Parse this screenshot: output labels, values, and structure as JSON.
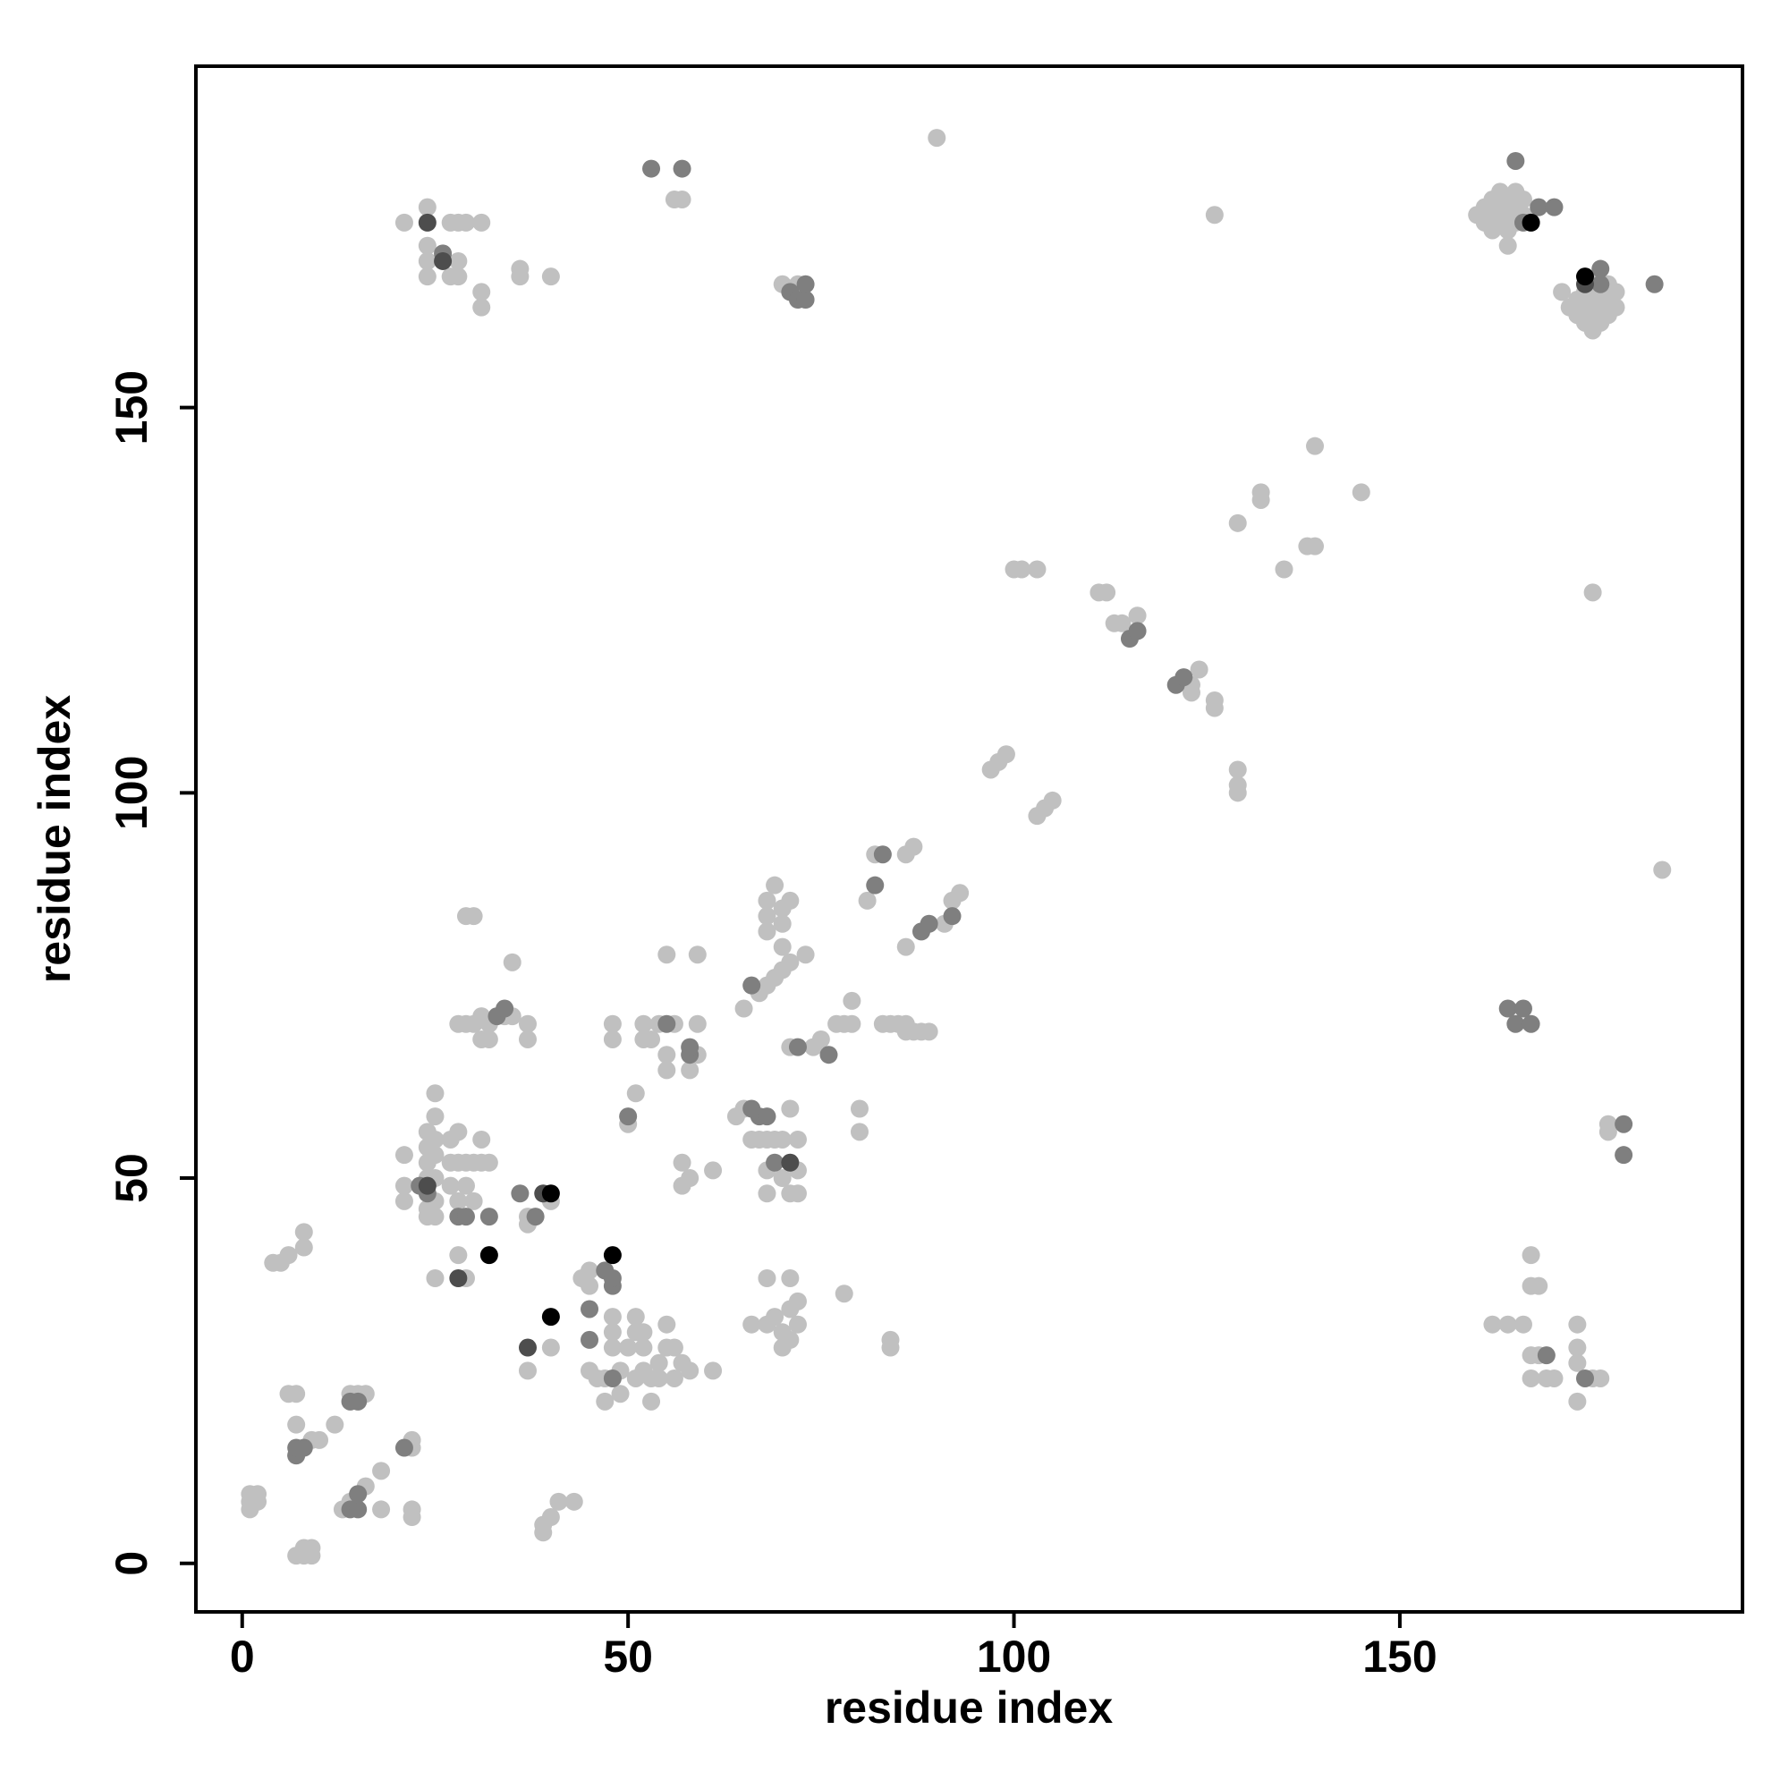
{
  "chart_data": {
    "type": "scatter",
    "x_label": "residue index",
    "y_label": "residue index",
    "xlim": [
      -6,
      194.4
    ],
    "ylim": [
      -6.3,
      194.3
    ],
    "xticks": [
      0,
      50,
      100,
      150
    ],
    "yticks": [
      0,
      50,
      100,
      150
    ],
    "series": [
      {
        "color": "#c0c0c0",
        "x": [
          1,
          1,
          1,
          2,
          2,
          7,
          8,
          9,
          8,
          9,
          4,
          5,
          6,
          8,
          8,
          6,
          7,
          7,
          7,
          9,
          10,
          12,
          13,
          14,
          16,
          18,
          18,
          14,
          15,
          16,
          22,
          22,
          22,
          22,
          39,
          39,
          40,
          41,
          43,
          21,
          21,
          21,
          24,
          24,
          24,
          24,
          24,
          24,
          25,
          25,
          25,
          25,
          25,
          25,
          25,
          27,
          27,
          27,
          28,
          28,
          28,
          28,
          29,
          29,
          30,
          30,
          31,
          31,
          32,
          25,
          29,
          28,
          29,
          30,
          31,
          31,
          32,
          32,
          34,
          35,
          37,
          37,
          29,
          30,
          35,
          37,
          37,
          40,
          37,
          40,
          44,
          45,
          45,
          45,
          46,
          47,
          47,
          48,
          48,
          48,
          49,
          49,
          50,
          51,
          51,
          51,
          52,
          52,
          53,
          53,
          54,
          54,
          55,
          55,
          56,
          56,
          57,
          58,
          61,
          52,
          48,
          48,
          50,
          51,
          52,
          52,
          53,
          54,
          55,
          55,
          56,
          57,
          57,
          58,
          58,
          59,
          59,
          61,
          55,
          59,
          64,
          65,
          66,
          67,
          68,
          69,
          70,
          70,
          68,
          68,
          71,
          72,
          71,
          72,
          72,
          65,
          67,
          68,
          69,
          70,
          71,
          70,
          68,
          68,
          68,
          69,
          70,
          70,
          71,
          73,
          66,
          68,
          68,
          69,
          70,
          70,
          71,
          71,
          71,
          72,
          72,
          71,
          74,
          75,
          77,
          78,
          79,
          79,
          78,
          80,
          80,
          81,
          82,
          86,
          87,
          86,
          83,
          84,
          85,
          86,
          86,
          87,
          88,
          89,
          91,
          92,
          93,
          84,
          84,
          97,
          98,
          99,
          103,
          104,
          105,
          100,
          101,
          103,
          111,
          112,
          113,
          114,
          116,
          123,
          123,
          124,
          126,
          126,
          129,
          129,
          129,
          129,
          132,
          132,
          135,
          138,
          139,
          139,
          145,
          126,
          90,
          56,
          57,
          21,
          24,
          24,
          24,
          27,
          27,
          28,
          28,
          29,
          31,
          31,
          31,
          28,
          36,
          36,
          40,
          24,
          70,
          72,
          160,
          161,
          161,
          162,
          162,
          162,
          163,
          163,
          163,
          164,
          164,
          164,
          165,
          165,
          165,
          166,
          166,
          164,
          171,
          172,
          173,
          173,
          174,
          174,
          174,
          175,
          175,
          175,
          176,
          176,
          176,
          177,
          177,
          177,
          178,
          178,
          175,
          175,
          184,
          177,
          177,
          162,
          164,
          166,
          167,
          167,
          168,
          167,
          167,
          168,
          169,
          170,
          173,
          173,
          173,
          173,
          175,
          176
        ],
        "values": [
          7,
          8,
          9,
          8,
          9,
          1,
          1,
          1,
          2,
          2,
          39,
          39,
          40,
          41,
          43,
          22,
          22,
          18,
          14,
          16,
          16,
          18,
          7,
          8,
          10,
          12,
          7,
          22,
          22,
          22,
          15,
          16,
          7,
          6,
          4,
          5,
          6,
          8,
          8,
          53,
          49,
          47,
          45,
          46,
          50,
          52,
          54,
          56,
          55,
          58,
          61,
          45,
          47,
          50,
          53,
          55,
          52,
          49,
          56,
          52,
          47,
          40,
          52,
          49,
          52,
          47,
          55,
          52,
          52,
          37,
          37,
          70,
          70,
          70,
          71,
          68,
          70,
          68,
          71,
          71,
          70,
          68,
          84,
          84,
          78,
          44,
          45,
          47,
          25,
          28,
          37,
          38,
          36,
          25,
          24,
          24,
          21,
          28,
          30,
          32,
          22,
          25,
          28,
          24,
          30,
          32,
          25,
          28,
          24,
          21,
          26,
          24,
          28,
          31,
          24,
          28,
          26,
          25,
          25,
          30,
          70,
          68,
          57,
          61,
          70,
          68,
          68,
          70,
          66,
          64,
          70,
          52,
          49,
          50,
          64,
          70,
          66,
          51,
          79,
          79,
          58,
          59,
          55,
          55,
          55,
          55,
          55,
          50,
          48,
          51,
          48,
          48,
          59,
          51,
          55,
          72,
          74,
          75,
          76,
          77,
          78,
          80,
          82,
          84,
          86,
          88,
          83,
          85,
          86,
          79,
          31,
          31,
          37,
          32,
          28,
          30,
          29,
          33,
          37,
          31,
          34,
          67,
          67,
          68,
          70,
          70,
          70,
          73,
          35,
          59,
          56,
          86,
          92,
          92,
          93,
          80,
          70,
          70,
          70,
          69,
          70,
          69,
          69,
          69,
          83,
          86,
          87,
          28,
          29,
          103,
          104,
          105,
          97,
          98,
          99,
          129,
          129,
          129,
          126,
          126,
          122,
          122,
          123,
          113,
          114,
          116,
          111,
          112,
          100,
          101,
          103,
          135,
          138,
          139,
          129,
          132,
          132,
          145,
          139,
          175,
          185,
          177,
          177,
          174,
          176,
          169,
          167,
          174,
          167,
          167,
          174,
          174,
          174,
          165,
          163,
          169,
          168,
          167,
          167,
          171,
          166,
          166,
          175,
          174,
          176,
          173,
          175,
          177,
          174,
          176,
          178,
          173,
          175,
          177,
          174,
          176,
          178,
          175,
          177,
          171,
          165,
          163,
          162,
          164,
          161,
          163,
          165,
          162,
          164,
          166,
          161,
          163,
          165,
          162,
          164,
          166,
          163,
          165,
          160,
          126,
          90,
          56,
          57,
          31,
          31,
          31,
          40,
          36,
          36,
          27,
          24,
          27,
          24,
          24,
          31,
          28,
          26,
          21,
          24,
          24
        ]
      },
      {
        "color": "#7f7f7f",
        "x": [
          7,
          7,
          8,
          14,
          15,
          14,
          15,
          15,
          21,
          23,
          24,
          28,
          29,
          32,
          33,
          34,
          36,
          38,
          26,
          45,
          45,
          47,
          48,
          48,
          48,
          50,
          55,
          58,
          58,
          66,
          66,
          67,
          68,
          69,
          53,
          57,
          71,
          72,
          73,
          73,
          72,
          76,
          82,
          83,
          88,
          89,
          92,
          115,
          116,
          121,
          122,
          165,
          166,
          168,
          170,
          176,
          176,
          183,
          164,
          166,
          165,
          167,
          179,
          179,
          169,
          174
        ],
        "values": [
          14,
          15,
          15,
          21,
          21,
          7,
          7,
          9,
          15,
          49,
          48,
          45,
          45,
          45,
          71,
          72,
          48,
          45,
          170,
          33,
          29,
          38,
          36,
          37,
          24,
          58,
          70,
          66,
          67,
          75,
          59,
          58,
          58,
          52,
          181,
          181,
          165,
          164,
          164,
          166,
          67,
          66,
          88,
          92,
          82,
          83,
          84,
          120,
          121,
          114,
          115,
          182,
          174,
          176,
          176,
          168,
          166,
          166,
          72,
          72,
          70,
          70,
          57,
          53,
          27,
          24
        ]
      },
      {
        "color": "#4d4d4d",
        "x": [
          24,
          26,
          28,
          37,
          39,
          71,
          174,
          24
        ],
        "values": [
          174,
          169,
          37,
          28,
          48,
          52,
          166,
          49
        ]
      },
      {
        "color": "#000000",
        "x": [
          32,
          40,
          40,
          48,
          167,
          174
        ],
        "values": [
          40,
          48,
          32,
          40,
          174,
          167
        ]
      }
    ]
  }
}
